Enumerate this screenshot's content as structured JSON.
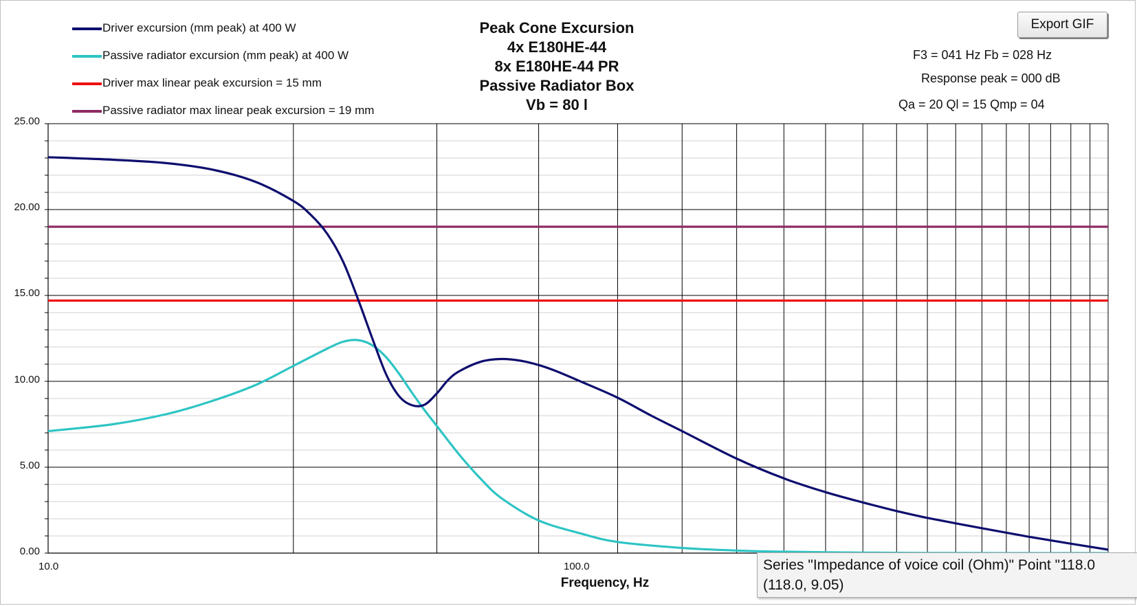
{
  "export_button": {
    "label": "Export GIF"
  },
  "title_lines": [
    "Peak Cone Excursion",
    "4x E180HE-44",
    "8x E180HE-44 PR",
    "Passive Radiator Box",
    "Vb = 80 l"
  ],
  "info": {
    "f3_fb": "F3 = 041 Hz  Fb = 028 Hz",
    "response_peak": "Response peak = 000 dB",
    "q_values": "Qa = 20  Ql = 15  Qmp = 04"
  },
  "tooltip": {
    "line1": "Series \"Impedance of voice coil (Ohm)\" Point \"118.0",
    "line2": "(118.0, 9.05)"
  },
  "colors": {
    "driver": "#0d0d6e",
    "passive": "#2ec4c4",
    "driver_limit": "#ee1111",
    "passive_limit": "#8e2a63",
    "grid": "#000000"
  },
  "chart_data": {
    "type": "line",
    "x_scale": "log",
    "xlabel": "Frequency, Hz",
    "ylabel": "",
    "xlim": [
      10,
      200
    ],
    "ylim": [
      0,
      25
    ],
    "x_tick_labels": [
      {
        "value": 10,
        "label": "10.0"
      },
      {
        "value": 100,
        "label": "100.0"
      }
    ],
    "y_ticks": [
      {
        "value": 0,
        "label": "0.00"
      },
      {
        "value": 5,
        "label": "5.00"
      },
      {
        "value": 10,
        "label": "10.00"
      },
      {
        "value": 15,
        "label": "15.00"
      },
      {
        "value": 20,
        "label": "20.00"
      },
      {
        "value": 25,
        "label": "25.00"
      }
    ],
    "grid": true,
    "legend_position": "top-left",
    "series": [
      {
        "name": "Driver excursion (mm peak) at 400 W",
        "color": "#0d0d6e",
        "x": [
          10,
          12,
          14,
          16,
          18,
          20,
          21,
          22,
          23,
          24,
          25,
          26,
          27,
          28,
          29,
          30,
          31,
          32,
          34,
          36,
          38,
          40,
          42,
          45,
          50,
          55,
          60,
          70,
          80,
          90,
          100,
          110,
          120,
          140,
          160,
          180,
          200
        ],
        "y": [
          23.05,
          22.9,
          22.7,
          22.3,
          21.6,
          20.5,
          19.7,
          18.6,
          17.0,
          14.8,
          12.5,
          10.4,
          9.1,
          8.6,
          8.65,
          9.3,
          10.1,
          10.6,
          11.15,
          11.3,
          11.2,
          10.95,
          10.6,
          10.0,
          9.05,
          8.0,
          7.1,
          5.5,
          4.35,
          3.55,
          2.95,
          2.45,
          2.05,
          1.45,
          0.95,
          0.55,
          0.2
        ]
      },
      {
        "name": "Passive radiator excursion (mm peak) at 400 W",
        "color": "#2ec4c4",
        "x": [
          10,
          12,
          14,
          16,
          18,
          20,
          22,
          23,
          24,
          25,
          26,
          27,
          28,
          29,
          30,
          32,
          34,
          36,
          40,
          45,
          50,
          60,
          70,
          80,
          100,
          120,
          150,
          200
        ],
        "y": [
          7.1,
          7.5,
          8.1,
          8.9,
          9.8,
          10.9,
          11.9,
          12.3,
          12.4,
          12.1,
          11.4,
          10.4,
          9.3,
          8.3,
          7.4,
          5.7,
          4.3,
          3.2,
          1.9,
          1.15,
          0.65,
          0.3,
          0.15,
          0.08,
          0.03,
          0.01,
          0.0,
          0.0
        ]
      },
      {
        "name": "Driver max linear peak excursion = 15 mm",
        "color": "#ee1111",
        "x": [
          10,
          200
        ],
        "y": [
          14.7,
          14.7
        ]
      },
      {
        "name": "Passive radiator max linear peak excursion = 19 mm",
        "color": "#8e2a63",
        "x": [
          10,
          200
        ],
        "y": [
          19.0,
          19.0
        ]
      }
    ]
  }
}
